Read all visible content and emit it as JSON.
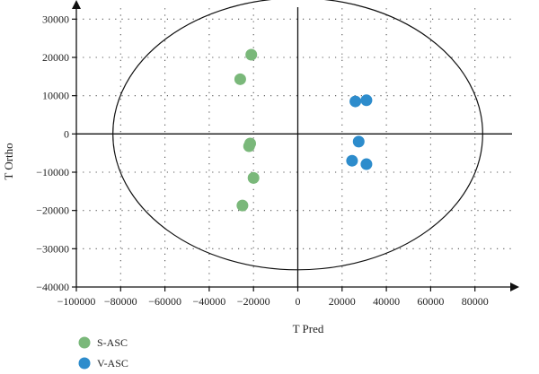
{
  "chart_data": {
    "type": "scatter",
    "title": "",
    "xlabel": "T Pred",
    "ylabel": "T Ortho",
    "xlim": [
      -100000,
      100000
    ],
    "ylim": [
      -40000,
      35000
    ],
    "x_ticks": [
      -100000,
      -80000,
      -60000,
      -40000,
      -20000,
      0,
      20000,
      40000,
      60000,
      80000
    ],
    "y_ticks": [
      30000,
      20000,
      10000,
      0,
      -10000,
      -20000,
      -30000,
      -40000
    ],
    "x_tick_labels": [
      "−100000",
      "−80000",
      "−60000",
      "−40000",
      "−20000",
      "0",
      "20000",
      "40000",
      "60000",
      "80000"
    ],
    "y_tick_labels": [
      "30000",
      "20000",
      "10000",
      "0",
      "−10000",
      "−20000",
      "−30000",
      "−40000"
    ],
    "grid": "dotted",
    "confidence_ellipse": {
      "center": [
        0,
        0
      ],
      "semi_x": 83500,
      "semi_y": 35500
    },
    "legend_position": "bottom-left",
    "series": [
      {
        "name": "S-ASC",
        "color": "#7ab87a",
        "points": [
          [
            -21000,
            20700
          ],
          [
            -26000,
            14300
          ],
          [
            -21500,
            -2500
          ],
          [
            -22000,
            -3200
          ],
          [
            -20000,
            -11500
          ],
          [
            -25000,
            -18700
          ]
        ]
      },
      {
        "name": "V-ASC",
        "color": "#2d8ccc",
        "points": [
          [
            26000,
            8500
          ],
          [
            31000,
            8800
          ],
          [
            27500,
            -2000
          ],
          [
            24500,
            -7000
          ],
          [
            31000,
            -7900
          ]
        ]
      }
    ]
  }
}
